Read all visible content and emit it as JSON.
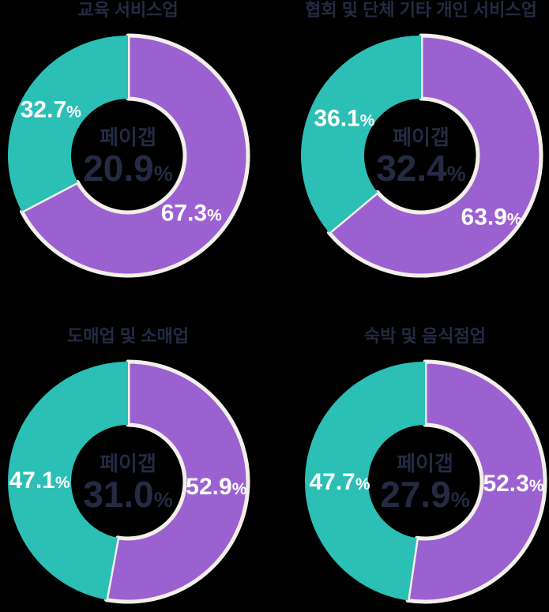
{
  "background_color": "#000000",
  "colors": {
    "teal": "#2BBFB5",
    "purple": "#9C61D0",
    "wedge_stroke": "#F2EFE8",
    "title_text": "#242A42",
    "center_text": "#242A42",
    "segment_label": "#FFFFFF"
  },
  "chart_data": [
    {
      "type": "pie",
      "subtype": "donut",
      "title": "교육 서비스업",
      "center": {
        "label": "페이갭",
        "value": "20.9",
        "unit": "%"
      },
      "segments": [
        {
          "name": "purple-segment",
          "color_key": "purple",
          "value": 67.3,
          "label": "67.3",
          "unit": "%",
          "outlined": true,
          "label_angle": 132,
          "label_radius": 108
        },
        {
          "name": "teal-segment",
          "color_key": "teal",
          "value": 32.7,
          "label": "32.7",
          "unit": "%",
          "outlined": false,
          "label_angle": 301,
          "label_radius": 114
        }
      ]
    },
    {
      "type": "pie",
      "subtype": "donut",
      "title": "협회 및 단체 기타 개인 서비스업",
      "center": {
        "label": "페이갭",
        "value": "32.4",
        "unit": "%"
      },
      "segments": [
        {
          "name": "purple-segment",
          "color_key": "purple",
          "value": 63.9,
          "label": "63.9",
          "unit": "%",
          "outlined": true,
          "label_angle": 131,
          "label_radius": 118
        },
        {
          "name": "teal-segment",
          "color_key": "teal",
          "value": 36.1,
          "label": "36.1",
          "unit": "%",
          "outlined": false,
          "label_angle": 296,
          "label_radius": 108
        }
      ]
    },
    {
      "type": "pie",
      "subtype": "donut",
      "title": "도매업 및 소매업",
      "center": {
        "label": "페이갭",
        "value": "31.0",
        "unit": "%"
      },
      "segments": [
        {
          "name": "purple-segment",
          "color_key": "purple",
          "value": 52.9,
          "label": "52.9",
          "unit": "%",
          "outlined": true,
          "label_angle": 93,
          "label_radius": 112
        },
        {
          "name": "teal-segment",
          "color_key": "teal",
          "value": 47.1,
          "label": "47.1",
          "unit": "%",
          "outlined": false,
          "label_angle": 271,
          "label_radius": 112
        }
      ]
    },
    {
      "type": "pie",
      "subtype": "donut",
      "title": "숙박 및 음식점업",
      "center": {
        "label": "페이갭",
        "value": "27.9",
        "unit": "%"
      },
      "segments": [
        {
          "name": "purple-segment",
          "color_key": "purple",
          "value": 52.3,
          "label": "52.3",
          "unit": "%",
          "outlined": true,
          "label_angle": 91,
          "label_radius": 112
        },
        {
          "name": "teal-segment",
          "color_key": "teal",
          "value": 47.7,
          "label": "47.7",
          "unit": "%",
          "outlined": false,
          "label_angle": 270,
          "label_radius": 108
        }
      ]
    }
  ]
}
